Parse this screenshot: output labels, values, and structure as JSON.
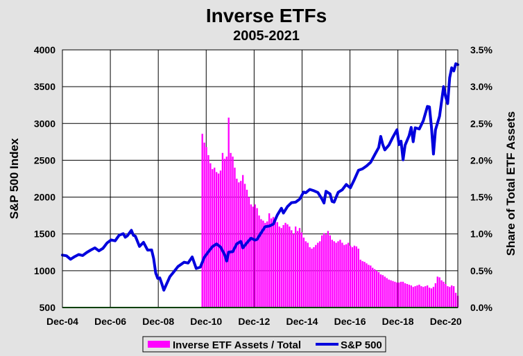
{
  "chart_data": {
    "type": "bar+line",
    "title": "Inverse ETFs",
    "subtitle": "2005-2021",
    "ylabel_left": "S&P 500 Index",
    "ylabel_right": "Share of Total ETF Assets",
    "ylim_left": [
      500,
      4000
    ],
    "ylim_right": [
      0,
      0.035
    ],
    "left_ticks": [
      "4000",
      "3500",
      "3000",
      "2500",
      "2000",
      "1500",
      "1000",
      "500"
    ],
    "right_ticks": [
      "3.5%",
      "3.0%",
      "2.5%",
      "2.0%",
      "1.5%",
      "1.0%",
      "0.5%",
      "0.0%"
    ],
    "x_tick_labels": [
      "Dec-04",
      "Dec-06",
      "Dec-08",
      "Dec-10",
      "Dec-12",
      "Dec-14",
      "Dec-16",
      "Dec-18",
      "Dec-20"
    ],
    "x_range": [
      "2004-12",
      "2021-03"
    ],
    "grid": true,
    "legend_position": "bottom",
    "series": [
      {
        "name": "Inverse ETF Assets / Total",
        "kind": "bar",
        "axis": "right",
        "color": "#ff00ff",
        "points": [
          [
            "2010-09",
            0.0236
          ],
          [
            "2010-10",
            0.0224
          ],
          [
            "2010-11",
            0.0218
          ],
          [
            "2010-12",
            0.0207
          ],
          [
            "2011-01",
            0.0196
          ],
          [
            "2011-02",
            0.0188
          ],
          [
            "2011-03",
            0.019
          ],
          [
            "2011-04",
            0.0184
          ],
          [
            "2011-05",
            0.0182
          ],
          [
            "2011-06",
            0.0186
          ],
          [
            "2011-07",
            0.021
          ],
          [
            "2011-08",
            0.0202
          ],
          [
            "2011-09",
            0.0205
          ],
          [
            "2011-10",
            0.0258
          ],
          [
            "2011-11",
            0.021
          ],
          [
            "2011-12",
            0.0205
          ],
          [
            "2012-01",
            0.019
          ],
          [
            "2012-02",
            0.0175
          ],
          [
            "2012-03",
            0.017
          ],
          [
            "2012-04",
            0.0172
          ],
          [
            "2012-05",
            0.018
          ],
          [
            "2012-06",
            0.0168
          ],
          [
            "2012-07",
            0.016
          ],
          [
            "2012-08",
            0.015
          ],
          [
            "2012-09",
            0.014
          ],
          [
            "2012-10",
            0.0137
          ],
          [
            "2012-11",
            0.014
          ],
          [
            "2012-12",
            0.0135
          ],
          [
            "2013-01",
            0.0125
          ],
          [
            "2013-02",
            0.012
          ],
          [
            "2013-03",
            0.0118
          ],
          [
            "2013-04",
            0.0115
          ],
          [
            "2013-05",
            0.0117
          ],
          [
            "2013-06",
            0.0128
          ],
          [
            "2013-07",
            0.0121
          ],
          [
            "2013-08",
            0.0123
          ],
          [
            "2013-09",
            0.012
          ],
          [
            "2013-10",
            0.0116
          ],
          [
            "2013-11",
            0.011
          ],
          [
            "2013-12",
            0.0108
          ],
          [
            "2014-01",
            0.0112
          ],
          [
            "2014-02",
            0.0115
          ],
          [
            "2014-03",
            0.0113
          ],
          [
            "2014-04",
            0.011
          ],
          [
            "2014-05",
            0.0105
          ],
          [
            "2014-06",
            0.01
          ],
          [
            "2014-07",
            0.011
          ],
          [
            "2014-08",
            0.0104
          ],
          [
            "2014-09",
            0.0108
          ],
          [
            "2014-10",
            0.0102
          ],
          [
            "2014-11",
            0.0095
          ],
          [
            "2014-12",
            0.009
          ],
          [
            "2015-01",
            0.0088
          ],
          [
            "2015-02",
            0.0082
          ],
          [
            "2015-03",
            0.008
          ],
          [
            "2015-04",
            0.0082
          ],
          [
            "2015-05",
            0.0085
          ],
          [
            "2015-06",
            0.0088
          ],
          [
            "2015-07",
            0.009
          ],
          [
            "2015-08",
            0.0098
          ],
          [
            "2015-09",
            0.0101
          ],
          [
            "2015-10",
            0.0099
          ],
          [
            "2015-11",
            0.0104
          ],
          [
            "2015-12",
            0.0098
          ],
          [
            "2016-01",
            0.0092
          ],
          [
            "2016-02",
            0.009
          ],
          [
            "2016-03",
            0.0088
          ],
          [
            "2016-04",
            0.009
          ],
          [
            "2016-05",
            0.0092
          ],
          [
            "2016-06",
            0.0088
          ],
          [
            "2016-07",
            0.0085
          ],
          [
            "2016-08",
            0.0086
          ],
          [
            "2016-09",
            0.0088
          ],
          [
            "2016-10",
            0.0084
          ],
          [
            "2016-11",
            0.0082
          ],
          [
            "2016-12",
            0.0084
          ],
          [
            "2017-01",
            0.0083
          ],
          [
            "2017-02",
            0.008
          ],
          [
            "2017-03",
            0.0065
          ],
          [
            "2017-04",
            0.0063
          ],
          [
            "2017-05",
            0.0062
          ],
          [
            "2017-06",
            0.006
          ],
          [
            "2017-07",
            0.0058
          ],
          [
            "2017-08",
            0.0057
          ],
          [
            "2017-09",
            0.0054
          ],
          [
            "2017-10",
            0.0052
          ],
          [
            "2017-11",
            0.005
          ],
          [
            "2017-12",
            0.0048
          ],
          [
            "2018-01",
            0.0045
          ],
          [
            "2018-02",
            0.0044
          ],
          [
            "2018-03",
            0.0042
          ],
          [
            "2018-04",
            0.004
          ],
          [
            "2018-05",
            0.0038
          ],
          [
            "2018-06",
            0.0037
          ],
          [
            "2018-07",
            0.0036
          ],
          [
            "2018-08",
            0.0035
          ],
          [
            "2018-09",
            0.0034
          ],
          [
            "2018-10",
            0.0034
          ],
          [
            "2018-11",
            0.0035
          ],
          [
            "2018-12",
            0.0035
          ],
          [
            "2019-01",
            0.0033
          ],
          [
            "2019-02",
            0.0032
          ],
          [
            "2019-03",
            0.0031
          ],
          [
            "2019-04",
            0.003
          ],
          [
            "2019-05",
            0.0028
          ],
          [
            "2019-06",
            0.0029
          ],
          [
            "2019-07",
            0.003
          ],
          [
            "2019-08",
            0.0031
          ],
          [
            "2019-09",
            0.0029
          ],
          [
            "2019-10",
            0.0028
          ],
          [
            "2019-11",
            0.0029
          ],
          [
            "2019-12",
            0.003
          ],
          [
            "2020-01",
            0.0027
          ],
          [
            "2020-02",
            0.0026
          ],
          [
            "2020-03",
            0.0028
          ],
          [
            "2020-04",
            0.0033
          ],
          [
            "2020-05",
            0.0042
          ],
          [
            "2020-06",
            0.0041
          ],
          [
            "2020-07",
            0.0037
          ],
          [
            "2020-08",
            0.0035
          ],
          [
            "2020-09",
            0.0032
          ],
          [
            "2020-10",
            0.0029
          ],
          [
            "2020-11",
            0.0028
          ],
          [
            "2020-12",
            0.003
          ],
          [
            "2021-01",
            0.0029
          ],
          [
            "2021-02",
            0.002
          ],
          [
            "2021-03",
            0.0016
          ]
        ]
      },
      {
        "name": "S&P 500",
        "kind": "line",
        "axis": "left",
        "color": "#0000dd",
        "points": [
          [
            "2004-12",
            1212
          ],
          [
            "2005-02",
            1203
          ],
          [
            "2005-04",
            1156
          ],
          [
            "2005-06",
            1191
          ],
          [
            "2005-08",
            1220
          ],
          [
            "2005-10",
            1207
          ],
          [
            "2005-12",
            1248
          ],
          [
            "2006-02",
            1281
          ],
          [
            "2006-04",
            1310
          ],
          [
            "2006-06",
            1270
          ],
          [
            "2006-08",
            1304
          ],
          [
            "2006-10",
            1377
          ],
          [
            "2006-12",
            1418
          ],
          [
            "2007-02",
            1406
          ],
          [
            "2007-04",
            1482
          ],
          [
            "2007-06",
            1503
          ],
          [
            "2007-07",
            1455
          ],
          [
            "2007-08",
            1473
          ],
          [
            "2007-10",
            1549
          ],
          [
            "2007-11",
            1481
          ],
          [
            "2007-12",
            1468
          ],
          [
            "2008-02",
            1330
          ],
          [
            "2008-04",
            1385
          ],
          [
            "2008-06",
            1280
          ],
          [
            "2008-08",
            1282
          ],
          [
            "2008-09",
            1166
          ],
          [
            "2008-10",
            968
          ],
          [
            "2008-11",
            896
          ],
          [
            "2008-12",
            903
          ],
          [
            "2009-01",
            826
          ],
          [
            "2009-02",
            735
          ],
          [
            "2009-03",
            797
          ],
          [
            "2009-05",
            919
          ],
          [
            "2009-07",
            987
          ],
          [
            "2009-09",
            1057
          ],
          [
            "2009-11",
            1096
          ],
          [
            "2009-12",
            1115
          ],
          [
            "2010-02",
            1104
          ],
          [
            "2010-04",
            1187
          ],
          [
            "2010-06",
            1031
          ],
          [
            "2010-08",
            1049
          ],
          [
            "2010-10",
            1183
          ],
          [
            "2010-12",
            1258
          ],
          [
            "2011-02",
            1327
          ],
          [
            "2011-04",
            1364
          ],
          [
            "2011-06",
            1321
          ],
          [
            "2011-08",
            1219
          ],
          [
            "2011-09",
            1131
          ],
          [
            "2011-10",
            1253
          ],
          [
            "2011-12",
            1258
          ],
          [
            "2012-02",
            1366
          ],
          [
            "2012-04",
            1398
          ],
          [
            "2012-05",
            1310
          ],
          [
            "2012-07",
            1379
          ],
          [
            "2012-09",
            1441
          ],
          [
            "2012-11",
            1416
          ],
          [
            "2012-12",
            1426
          ],
          [
            "2013-02",
            1515
          ],
          [
            "2013-04",
            1598
          ],
          [
            "2013-06",
            1606
          ],
          [
            "2013-08",
            1633
          ],
          [
            "2013-10",
            1757
          ],
          [
            "2013-12",
            1848
          ],
          [
            "2014-01",
            1783
          ],
          [
            "2014-03",
            1872
          ],
          [
            "2014-05",
            1924
          ],
          [
            "2014-07",
            1931
          ],
          [
            "2014-09",
            1972
          ],
          [
            "2014-11",
            2068
          ],
          [
            "2014-12",
            2059
          ],
          [
            "2015-02",
            2104
          ],
          [
            "2015-04",
            2086
          ],
          [
            "2015-06",
            2063
          ],
          [
            "2015-08",
            1972
          ],
          [
            "2015-09",
            1920
          ],
          [
            "2015-10",
            2079
          ],
          [
            "2015-12",
            2044
          ],
          [
            "2016-01",
            1940
          ],
          [
            "2016-02",
            1932
          ],
          [
            "2016-04",
            2065
          ],
          [
            "2016-06",
            2099
          ],
          [
            "2016-08",
            2171
          ],
          [
            "2016-10",
            2126
          ],
          [
            "2016-12",
            2239
          ],
          [
            "2017-02",
            2364
          ],
          [
            "2017-04",
            2384
          ],
          [
            "2017-06",
            2423
          ],
          [
            "2017-08",
            2472
          ],
          [
            "2017-10",
            2575
          ],
          [
            "2017-12",
            2674
          ],
          [
            "2018-01",
            2824
          ],
          [
            "2018-02",
            2714
          ],
          [
            "2018-03",
            2641
          ],
          [
            "2018-05",
            2705
          ],
          [
            "2018-07",
            2816
          ],
          [
            "2018-09",
            2914
          ],
          [
            "2018-10",
            2712
          ],
          [
            "2018-11",
            2760
          ],
          [
            "2018-12",
            2507
          ],
          [
            "2019-01",
            2704
          ],
          [
            "2019-03",
            2834
          ],
          [
            "2019-04",
            2946
          ],
          [
            "2019-05",
            2752
          ],
          [
            "2019-06",
            2942
          ],
          [
            "2019-08",
            2926
          ],
          [
            "2019-10",
            3038
          ],
          [
            "2019-12",
            3231
          ],
          [
            "2020-01",
            3226
          ],
          [
            "2020-02",
            2954
          ],
          [
            "2020-03",
            2585
          ],
          [
            "2020-04",
            2912
          ],
          [
            "2020-06",
            3100
          ],
          [
            "2020-08",
            3500
          ],
          [
            "2020-09",
            3363
          ],
          [
            "2020-10",
            3270
          ],
          [
            "2020-11",
            3622
          ],
          [
            "2020-12",
            3756
          ],
          [
            "2021-01",
            3714
          ],
          [
            "2021-02",
            3811
          ],
          [
            "2021-03",
            3800
          ]
        ]
      }
    ]
  }
}
